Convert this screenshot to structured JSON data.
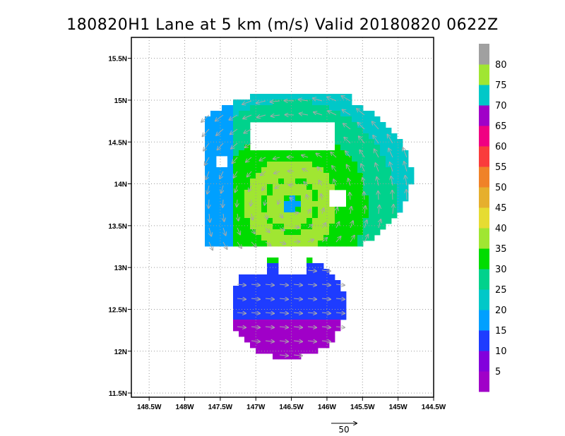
{
  "chart_data": {
    "type": "heatmap",
    "title": "180820H1 Lane at 5 km (m/s) Valid 20180820 0622Z",
    "x_ticks": [
      "148.5W",
      "148W",
      "147.5W",
      "147W",
      "146.5W",
      "146W",
      "145.5W",
      "145W",
      "144.5W"
    ],
    "x_tick_values": [
      -148.5,
      -148,
      -147.5,
      -147,
      -146.5,
      -146,
      -145.5,
      -145,
      -144.5
    ],
    "y_ticks": [
      "11.5N",
      "12N",
      "12.5N",
      "13N",
      "13.5N",
      "14N",
      "14.5N",
      "15N",
      "15.5N"
    ],
    "y_tick_values": [
      11.5,
      12,
      12.5,
      13,
      13.5,
      14,
      14.5,
      15,
      15.5
    ],
    "xlim": [
      -148.75,
      -144.5
    ],
    "ylim": [
      11.45,
      15.75
    ],
    "grid": true,
    "center": {
      "lon": -146.5,
      "lat": 13.75
    },
    "wind_max_ms": 50,
    "colorbar": {
      "placement": "right",
      "labels": [
        "5",
        "10",
        "15",
        "20",
        "25",
        "30",
        "35",
        "40",
        "45",
        "50",
        "55",
        "60",
        "65",
        "70",
        "75",
        "80"
      ],
      "colors": [
        "#a000c8",
        "#8200dc",
        "#1e3cff",
        "#00a0ff",
        "#00c8c8",
        "#00d28c",
        "#00dc00",
        "#a0e632",
        "#e6dc32",
        "#e6af2d",
        "#f08228",
        "#fa3c3c",
        "#f00082",
        "#a000c8",
        "#00c8c8",
        "#a0e632",
        "#a0a0a0"
      ]
    },
    "vector_reference": {
      "label": "50"
    }
  }
}
